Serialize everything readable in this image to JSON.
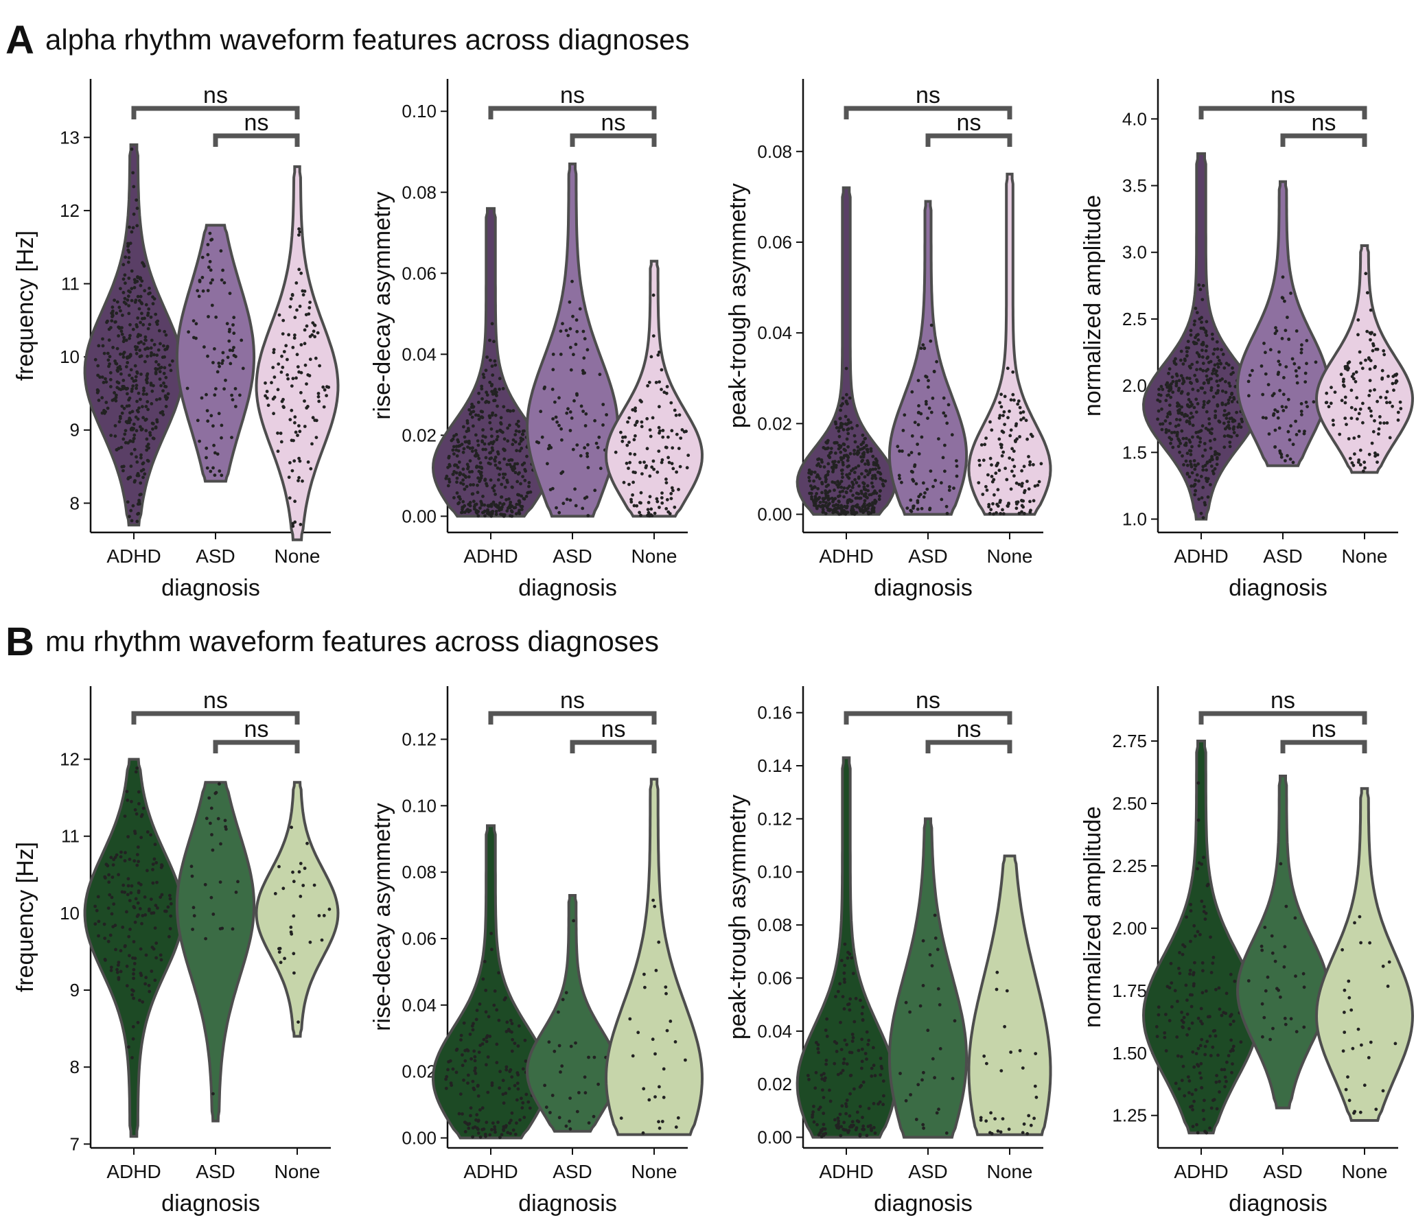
{
  "panels": [
    {
      "letter": "A",
      "title": "alpha rhythm waveform features across diagnoses",
      "palette": [
        "#5a3f66",
        "#8e70a0",
        "#e8cfe2"
      ]
    },
    {
      "letter": "B",
      "title": "mu rhythm waveform features across diagnoses",
      "palette": [
        "#1d4a25",
        "#3b6c45",
        "#c6d5aa"
      ]
    }
  ],
  "chart_data": [
    {
      "type": "violin",
      "panel": "A",
      "xlabel": "diagnosis",
      "ylabel": "frequency [Hz]",
      "categories": [
        "ADHD",
        "ASD",
        "None"
      ],
      "ylim": [
        7.6,
        13.8
      ],
      "yticks": [
        8,
        9,
        10,
        11,
        12,
        13
      ],
      "tick_labels": [
        "8",
        "9",
        "10",
        "11",
        "12",
        "13"
      ],
      "groups": [
        {
          "name": "ADHD",
          "min": 7.7,
          "max": 12.9,
          "median": 9.8,
          "q1": 9.2,
          "q3": 10.4,
          "n": 420
        },
        {
          "name": "ASD",
          "min": 8.3,
          "max": 11.8,
          "median": 10.0,
          "q1": 9.3,
          "q3": 10.7,
          "n": 90
        },
        {
          "name": "None",
          "min": 7.5,
          "max": 12.6,
          "median": 9.6,
          "q1": 9.0,
          "q3": 10.2,
          "n": 130
        }
      ],
      "annotations": [
        {
          "pair": [
            "ADHD",
            "None"
          ],
          "text": "ns"
        },
        {
          "pair": [
            "ASD",
            "None"
          ],
          "text": "ns"
        }
      ]
    },
    {
      "type": "violin",
      "panel": "A",
      "xlabel": "diagnosis",
      "ylabel": "rise-decay asymmetry",
      "categories": [
        "ADHD",
        "ASD",
        "None"
      ],
      "ylim": [
        -0.004,
        0.108
      ],
      "yticks": [
        0,
        0.02,
        0.04,
        0.06,
        0.08,
        0.1
      ],
      "tick_labels": [
        "0.00",
        "0.02",
        "0.04",
        "0.06",
        "0.08",
        "0.10"
      ],
      "groups": [
        {
          "name": "ADHD",
          "min": 0.0,
          "max": 0.076,
          "median": 0.012,
          "q1": 0.006,
          "q3": 0.022,
          "n": 420
        },
        {
          "name": "ASD",
          "min": 0.0,
          "max": 0.087,
          "median": 0.022,
          "q1": 0.01,
          "q3": 0.034,
          "n": 90
        },
        {
          "name": "None",
          "min": 0.0,
          "max": 0.063,
          "median": 0.015,
          "q1": 0.008,
          "q3": 0.024,
          "n": 130
        }
      ],
      "annotations": [
        {
          "pair": [
            "ADHD",
            "None"
          ],
          "text": "ns"
        },
        {
          "pair": [
            "ASD",
            "None"
          ],
          "text": "ns"
        }
      ]
    },
    {
      "type": "violin",
      "panel": "A",
      "xlabel": "diagnosis",
      "ylabel": "peak-trough asymmetry",
      "categories": [
        "ADHD",
        "ASD",
        "None"
      ],
      "ylim": [
        -0.004,
        0.096
      ],
      "yticks": [
        0,
        0.02,
        0.04,
        0.06,
        0.08
      ],
      "tick_labels": [
        "0.00",
        "0.02",
        "0.04",
        "0.06",
        "0.08"
      ],
      "groups": [
        {
          "name": "ADHD",
          "min": 0.0,
          "max": 0.072,
          "median": 0.007,
          "q1": 0.003,
          "q3": 0.014,
          "n": 420
        },
        {
          "name": "ASD",
          "min": 0.0,
          "max": 0.069,
          "median": 0.013,
          "q1": 0.006,
          "q3": 0.024,
          "n": 90
        },
        {
          "name": "None",
          "min": 0.0,
          "max": 0.075,
          "median": 0.01,
          "q1": 0.005,
          "q3": 0.019,
          "n": 130
        }
      ],
      "annotations": [
        {
          "pair": [
            "ADHD",
            "None"
          ],
          "text": "ns"
        },
        {
          "pair": [
            "ASD",
            "None"
          ],
          "text": "ns"
        }
      ]
    },
    {
      "type": "violin",
      "panel": "A",
      "xlabel": "diagnosis",
      "ylabel": "normalized amplitude",
      "categories": [
        "ADHD",
        "ASD",
        "None"
      ],
      "ylim": [
        0.9,
        4.3
      ],
      "yticks": [
        1.0,
        1.5,
        2.0,
        2.5,
        3.0,
        3.5,
        4.0
      ],
      "tick_labels": [
        "1.0",
        "1.5",
        "2.0",
        "2.5",
        "3.0",
        "3.5",
        "4.0"
      ],
      "groups": [
        {
          "name": "ADHD",
          "min": 1.0,
          "max": 3.74,
          "median": 1.85,
          "q1": 1.65,
          "q3": 2.1,
          "n": 420
        },
        {
          "name": "ASD",
          "min": 1.4,
          "max": 3.53,
          "median": 2.0,
          "q1": 1.8,
          "q3": 2.35,
          "n": 90
        },
        {
          "name": "None",
          "min": 1.35,
          "max": 3.05,
          "median": 1.9,
          "q1": 1.65,
          "q3": 2.1,
          "n": 130
        }
      ],
      "annotations": [
        {
          "pair": [
            "ADHD",
            "None"
          ],
          "text": "ns"
        },
        {
          "pair": [
            "ASD",
            "None"
          ],
          "text": "ns"
        }
      ]
    },
    {
      "type": "violin",
      "panel": "B",
      "xlabel": "diagnosis",
      "ylabel": "frequency [Hz]",
      "categories": [
        "ADHD",
        "ASD",
        "None"
      ],
      "ylim": [
        6.95,
        12.95
      ],
      "yticks": [
        7,
        8,
        9,
        10,
        11,
        12
      ],
      "tick_labels": [
        "7",
        "8",
        "9",
        "10",
        "11",
        "12"
      ],
      "groups": [
        {
          "name": "ADHD",
          "min": 7.1,
          "max": 12.0,
          "median": 10.0,
          "q1": 9.4,
          "q3": 10.5,
          "n": 170
        },
        {
          "name": "ASD",
          "min": 7.3,
          "max": 11.7,
          "median": 10.1,
          "q1": 9.5,
          "q3": 10.8,
          "n": 30
        },
        {
          "name": "None",
          "min": 8.4,
          "max": 11.7,
          "median": 10.0,
          "q1": 9.6,
          "q3": 10.4,
          "n": 30
        }
      ],
      "annotations": [
        {
          "pair": [
            "ADHD",
            "None"
          ],
          "text": "ns"
        },
        {
          "pair": [
            "ASD",
            "None"
          ],
          "text": "ns"
        }
      ]
    },
    {
      "type": "violin",
      "panel": "B",
      "xlabel": "diagnosis",
      "ylabel": "rise-decay asymmetry",
      "categories": [
        "ADHD",
        "ASD",
        "None"
      ],
      "ylim": [
        -0.003,
        0.136
      ],
      "yticks": [
        0,
        0.02,
        0.04,
        0.06,
        0.08,
        0.1,
        0.12
      ],
      "tick_labels": [
        "0.00",
        "0.02",
        "0.04",
        "0.06",
        "0.08",
        "0.10",
        "0.12"
      ],
      "groups": [
        {
          "name": "ADHD",
          "min": 0.0,
          "max": 0.094,
          "median": 0.018,
          "q1": 0.008,
          "q3": 0.03,
          "n": 170
        },
        {
          "name": "ASD",
          "min": 0.002,
          "max": 0.073,
          "median": 0.02,
          "q1": 0.012,
          "q3": 0.03,
          "n": 30
        },
        {
          "name": "None",
          "min": 0.001,
          "max": 0.108,
          "median": 0.018,
          "q1": 0.008,
          "q3": 0.04,
          "n": 30
        }
      ],
      "annotations": [
        {
          "pair": [
            "ADHD",
            "None"
          ],
          "text": "ns"
        },
        {
          "pair": [
            "ASD",
            "None"
          ],
          "text": "ns"
        }
      ]
    },
    {
      "type": "violin",
      "panel": "B",
      "xlabel": "diagnosis",
      "ylabel": "peak-trough asymmetry",
      "categories": [
        "ADHD",
        "ASD",
        "None"
      ],
      "ylim": [
        -0.004,
        0.17
      ],
      "yticks": [
        0,
        0.02,
        0.04,
        0.06,
        0.08,
        0.1,
        0.12,
        0.14,
        0.16
      ],
      "tick_labels": [
        "0.00",
        "0.02",
        "0.04",
        "0.06",
        "0.08",
        "0.10",
        "0.12",
        "0.14",
        "0.16"
      ],
      "groups": [
        {
          "name": "ADHD",
          "min": 0.0,
          "max": 0.143,
          "median": 0.02,
          "q1": 0.008,
          "q3": 0.04,
          "n": 170
        },
        {
          "name": "ASD",
          "min": 0.0,
          "max": 0.12,
          "median": 0.03,
          "q1": 0.012,
          "q3": 0.055,
          "n": 30
        },
        {
          "name": "None",
          "min": 0.001,
          "max": 0.106,
          "median": 0.025,
          "q1": 0.01,
          "q3": 0.06,
          "n": 30
        }
      ],
      "annotations": [
        {
          "pair": [
            "ADHD",
            "None"
          ],
          "text": "ns"
        },
        {
          "pair": [
            "ASD",
            "None"
          ],
          "text": "ns"
        }
      ]
    },
    {
      "type": "violin",
      "panel": "B",
      "xlabel": "diagnosis",
      "ylabel": "normalized amplitude",
      "categories": [
        "ADHD",
        "ASD",
        "None"
      ],
      "ylim": [
        1.12,
        2.97
      ],
      "yticks": [
        1.25,
        1.5,
        1.75,
        2.0,
        2.25,
        2.5,
        2.75
      ],
      "tick_labels": [
        "1.25",
        "1.50",
        "1.75",
        "2.00",
        "2.25",
        "2.50",
        "2.75"
      ],
      "groups": [
        {
          "name": "ADHD",
          "min": 1.18,
          "max": 2.75,
          "median": 1.65,
          "q1": 1.5,
          "q3": 1.85,
          "n": 170
        },
        {
          "name": "ASD",
          "min": 1.28,
          "max": 2.61,
          "median": 1.75,
          "q1": 1.6,
          "q3": 1.9,
          "n": 30
        },
        {
          "name": "None",
          "min": 1.23,
          "max": 2.56,
          "median": 1.65,
          "q1": 1.5,
          "q3": 1.85,
          "n": 30
        }
      ],
      "annotations": [
        {
          "pair": [
            "ADHD",
            "None"
          ],
          "text": "ns"
        },
        {
          "pair": [
            "ASD",
            "None"
          ],
          "text": "ns"
        }
      ]
    }
  ]
}
